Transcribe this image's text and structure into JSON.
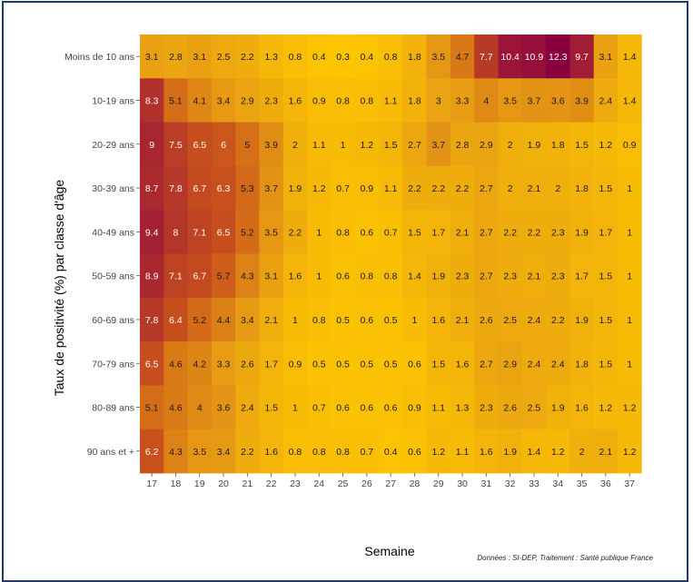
{
  "chart_data": {
    "type": "heatmap",
    "xlabel": "Semaine",
    "ylabel": "Taux de positivité (%) par classe d'âge",
    "source": "Données : SI-DEP, Traitement : Santé publique France",
    "x": [
      "17",
      "18",
      "19",
      "20",
      "21",
      "22",
      "23",
      "24",
      "25",
      "26",
      "27",
      "28",
      "29",
      "30",
      "31",
      "32",
      "33",
      "34",
      "35",
      "36",
      "37"
    ],
    "y": [
      "Moins de 10 ans",
      "10-19 ans",
      "20-29 ans",
      "30-39 ans",
      "40-49 ans",
      "50-59 ans",
      "60-69 ans",
      "70-79 ans",
      "80-89 ans",
      "90 ans et +"
    ],
    "values": [
      [
        3.1,
        2.8,
        3.1,
        2.5,
        2.2,
        1.3,
        0.8,
        0.4,
        0.3,
        0.4,
        0.8,
        1.8,
        3.5,
        4.7,
        7.7,
        10.4,
        10.9,
        12.3,
        9.7,
        3.1,
        1.4
      ],
      [
        8.3,
        5.1,
        4.1,
        3.4,
        2.9,
        2.3,
        1.6,
        0.9,
        0.8,
        0.8,
        1.1,
        1.8,
        3,
        3.3,
        4,
        3.5,
        3.7,
        3.6,
        3.9,
        2.4,
        1.4
      ],
      [
        9,
        7.5,
        6.5,
        6,
        5,
        3.9,
        2,
        1.1,
        1,
        1.2,
        1.5,
        2.7,
        3.7,
        2.8,
        2.9,
        2,
        1.9,
        1.8,
        1.5,
        1.2,
        0.9
      ],
      [
        8.7,
        7.8,
        6.7,
        6.3,
        5.3,
        3.7,
        1.9,
        1.2,
        0.7,
        0.9,
        1.1,
        2.2,
        2.2,
        2.2,
        2.7,
        2,
        2.1,
        2,
        1.8,
        1.5,
        1
      ],
      [
        9.4,
        8,
        7.1,
        6.5,
        5.2,
        3.5,
        2.2,
        1,
        0.8,
        0.6,
        0.7,
        1.5,
        1.7,
        2.1,
        2.7,
        2.2,
        2.2,
        2.3,
        1.9,
        1.7,
        1
      ],
      [
        8.9,
        7.1,
        6.7,
        5.7,
        4.3,
        3.1,
        1.6,
        1,
        0.6,
        0.8,
        0.8,
        1.4,
        1.9,
        2.3,
        2.7,
        2.3,
        2.1,
        2.3,
        1.7,
        1.5,
        1
      ],
      [
        7.8,
        6.4,
        5.2,
        4.4,
        3.4,
        2.1,
        1,
        0.8,
        0.5,
        0.6,
        0.5,
        1,
        1.6,
        2.1,
        2.6,
        2.5,
        2.4,
        2.2,
        1.9,
        1.5,
        1
      ],
      [
        6.5,
        4.6,
        4.2,
        3.3,
        2.6,
        1.7,
        0.9,
        0.5,
        0.5,
        0.5,
        0.5,
        0.6,
        1.5,
        1.6,
        2.7,
        2.9,
        2.4,
        2.4,
        1.8,
        1.5,
        1
      ],
      [
        5.1,
        4.6,
        4,
        3.6,
        2.4,
        1.5,
        1,
        0.7,
        0.6,
        0.6,
        0.6,
        0.9,
        1.1,
        1.3,
        2.3,
        2.6,
        2.5,
        1.9,
        1.6,
        1.2,
        1.2
      ],
      [
        6.2,
        4.3,
        3.5,
        3.4,
        2.2,
        1.6,
        0.8,
        0.8,
        0.8,
        0.7,
        0.4,
        0.6,
        1.2,
        1.1,
        1.6,
        1.9,
        1.4,
        1.2,
        2,
        2.1,
        1.2
      ]
    ],
    "color_scale": [
      "#ffc800",
      "#e9a212",
      "#c9521b",
      "#a62233",
      "#880040"
    ]
  }
}
